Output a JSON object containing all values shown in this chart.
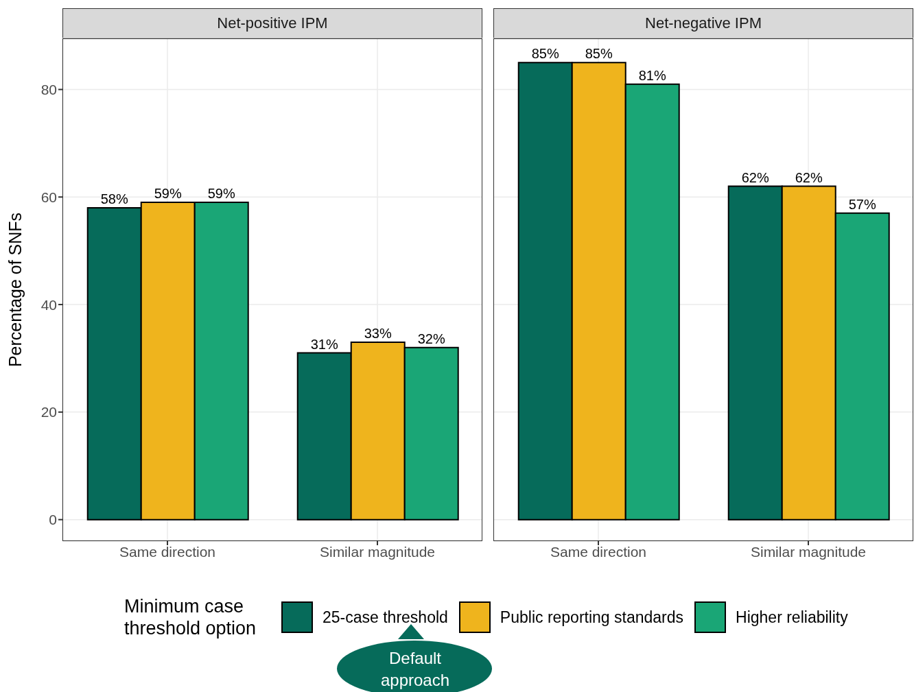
{
  "chart_data": [
    {
      "type": "bar",
      "title": "Net-positive IPM",
      "ylabel": "Percentage of SNFs",
      "categories": [
        "Same direction",
        "Similar magnitude"
      ],
      "series": [
        {
          "name": "25-case threshold",
          "color": "#066b5a",
          "values": [
            58,
            31
          ],
          "value_labels": [
            "58%",
            "31%"
          ]
        },
        {
          "name": "Public reporting standards",
          "color": "#efb41d",
          "values": [
            59,
            33
          ],
          "value_labels": [
            "59%",
            "33%"
          ]
        },
        {
          "name": "Higher reliability",
          "color": "#1aa676",
          "values": [
            59,
            32
          ],
          "value_labels": [
            "59%",
            "32%"
          ]
        }
      ],
      "ylim": [
        -4,
        89.5
      ],
      "yticks": [
        0,
        20,
        40,
        60,
        80
      ],
      "grid": true,
      "legend": "bottom",
      "legend_title": "Minimum case threshold option",
      "annotations": [
        "Default approach"
      ]
    },
    {
      "type": "bar",
      "title": "Net-negative IPM",
      "categories": [
        "Same direction",
        "Similar magnitude"
      ],
      "series": [
        {
          "color": "#066b5a",
          "values": [
            85,
            62
          ],
          "value_labels": [
            "85%",
            "62%"
          ]
        },
        {
          "color": "#efb41d",
          "values": [
            85,
            62
          ],
          "value_labels": [
            "85%",
            "62%"
          ]
        },
        {
          "color": "#1aa676",
          "values": [
            81,
            57
          ],
          "value_labels": [
            "81%",
            "57%"
          ]
        }
      ],
      "ylim": [
        -4,
        89.5
      ],
      "yticks": [
        0,
        20,
        40,
        60,
        80
      ],
      "grid": true,
      "tick_labels": "x"
    }
  ]
}
